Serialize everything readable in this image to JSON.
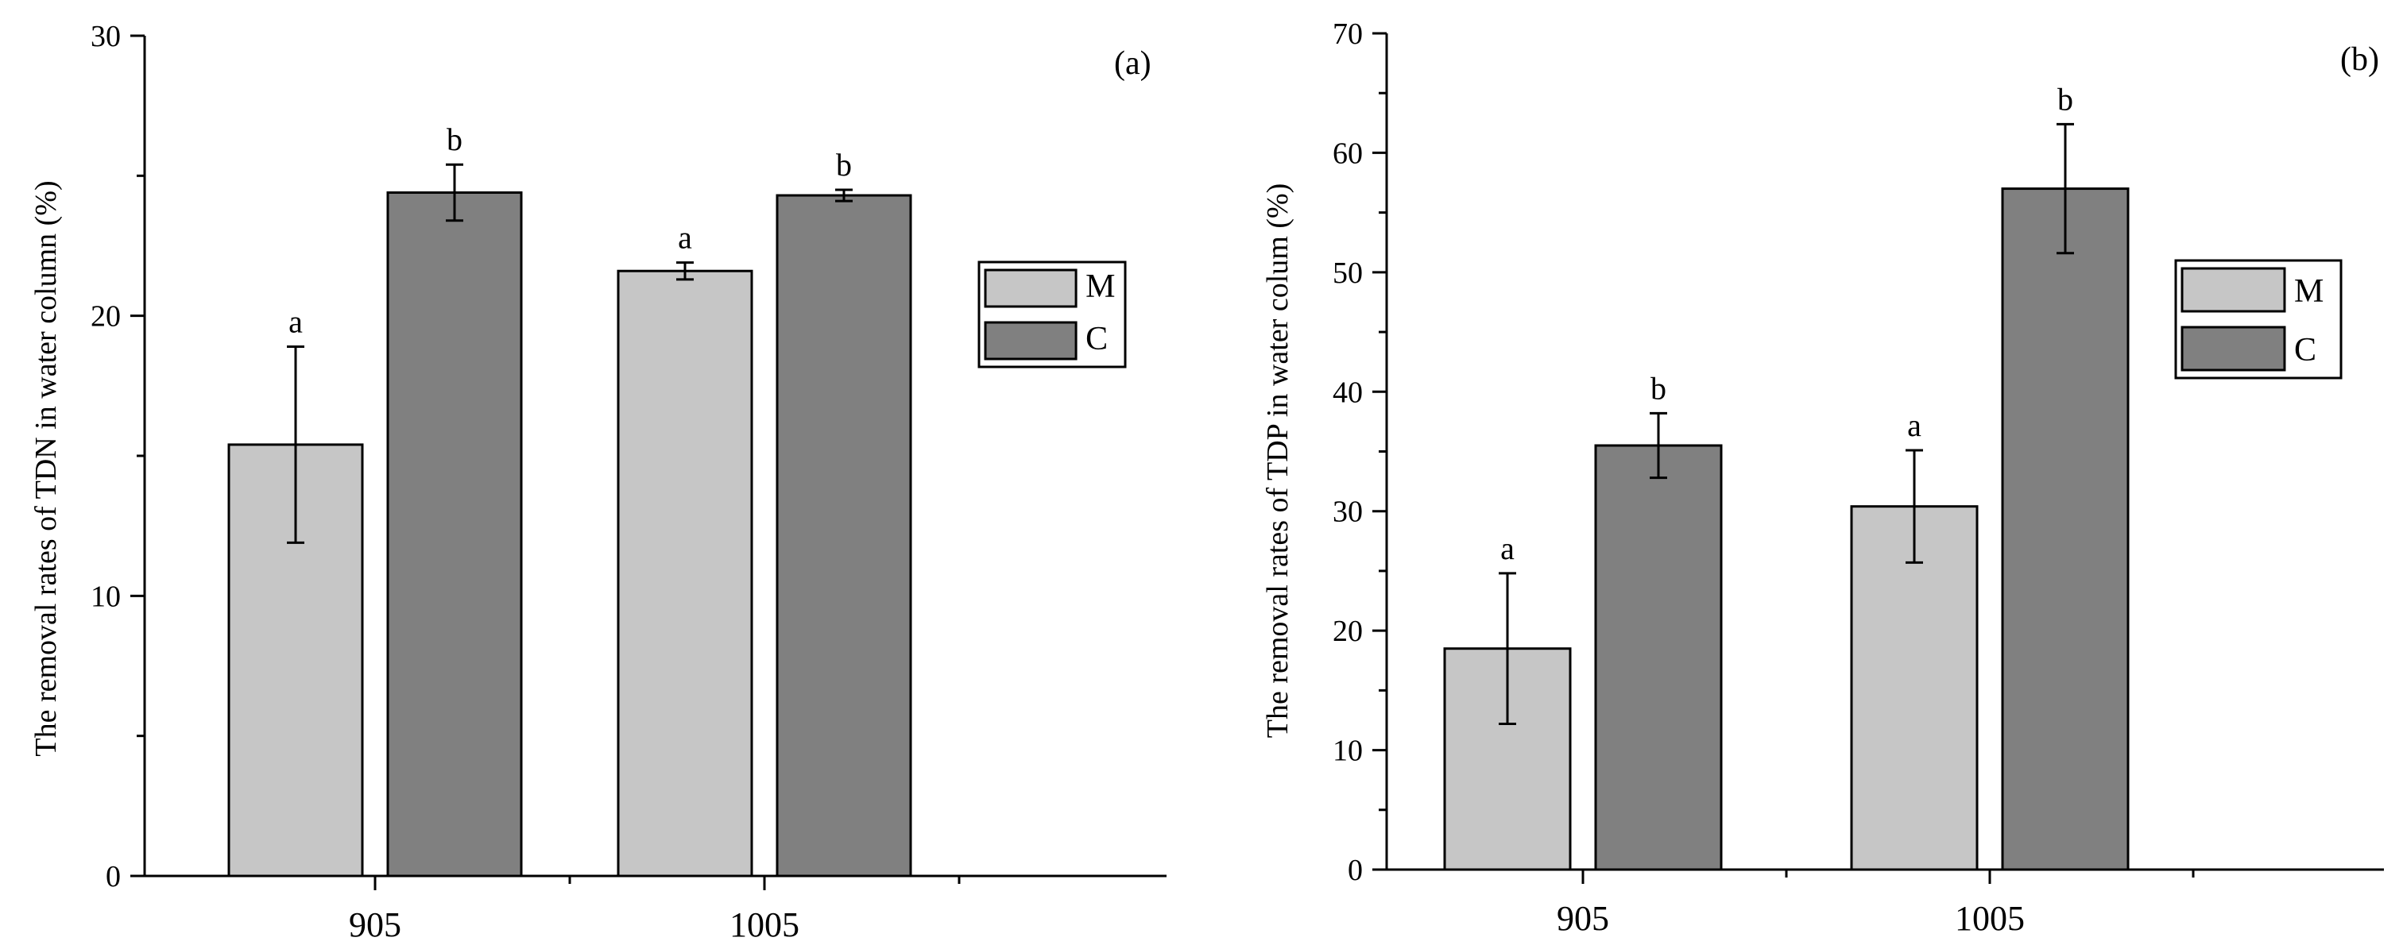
{
  "colors": {
    "M": "#c6c6c6",
    "C": "#808080"
  },
  "chart_data": [
    {
      "type": "bar",
      "panel_label": "(a)",
      "categories": [
        "905",
        "1005"
      ],
      "ylabel": "The removal rates of TDN in water column (%)",
      "ylim": [
        0,
        30
      ],
      "yticks": [
        0,
        10,
        20,
        30
      ],
      "legend": {
        "position": "right",
        "entries": [
          "M",
          "C"
        ]
      },
      "series": [
        {
          "name": "M",
          "values": [
            15.4,
            21.6
          ],
          "errors": [
            3.5,
            0.3
          ],
          "significance": [
            "a",
            "a"
          ]
        },
        {
          "name": "C",
          "values": [
            24.4,
            24.3
          ],
          "errors": [
            1.0,
            0.2
          ],
          "significance": [
            "b",
            "b"
          ]
        }
      ]
    },
    {
      "type": "bar",
      "panel_label": "(b)",
      "categories": [
        "905",
        "1005"
      ],
      "ylabel": "The removal rates of TDP in water colum (%)",
      "ylim": [
        0,
        70
      ],
      "yticks": [
        0,
        10,
        20,
        30,
        40,
        50,
        60,
        70
      ],
      "legend": {
        "position": "right",
        "entries": [
          "M",
          "C"
        ]
      },
      "series": [
        {
          "name": "M",
          "values": [
            18.5,
            30.4
          ],
          "errors": [
            6.3,
            4.7
          ],
          "significance": [
            "a",
            "a"
          ]
        },
        {
          "name": "C",
          "values": [
            35.5,
            57.0
          ],
          "errors": [
            2.7,
            5.4
          ],
          "significance": [
            "b",
            "b"
          ]
        }
      ]
    }
  ]
}
